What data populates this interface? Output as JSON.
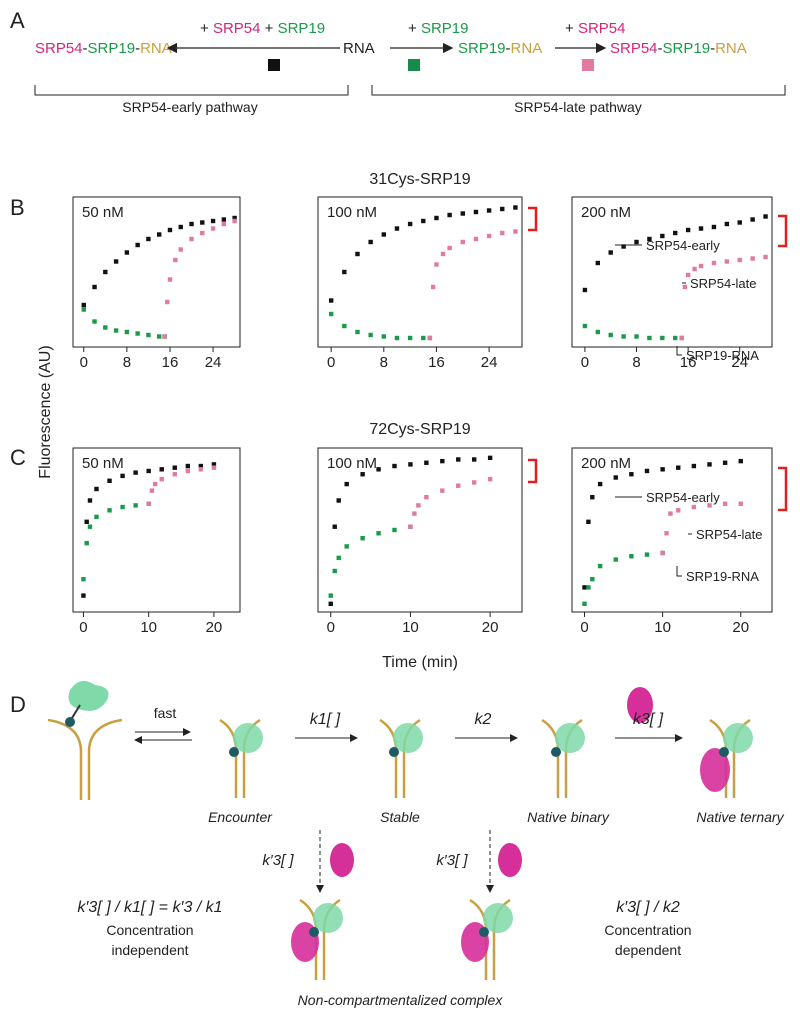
{
  "panel_labels": [
    "A",
    "B",
    "C",
    "D"
  ],
  "scheme": {
    "left_product": [
      "SRP54",
      "-",
      "SRP19",
      "-",
      "RNA"
    ],
    "left_reagents": [
      "+ ",
      "SRP54",
      " + ",
      "SRP19"
    ],
    "start": "RNA",
    "mid_reagent": [
      "+ ",
      "SRP19"
    ],
    "mid_product": [
      "SRP19",
      "-",
      "RNA"
    ],
    "right_reagent": [
      "+ ",
      "SRP54"
    ],
    "right_product": [
      "SRP54",
      "-",
      "SRP19",
      "-",
      "RNA"
    ],
    "early_pathway": "SRP54-early pathway",
    "late_pathway": "SRP54-late pathway"
  },
  "figure": {
    "row_titles": [
      "31Cys-SRP19",
      "72Cys-SRP19"
    ],
    "y_label": "Fluorescence (AU)",
    "x_label": "Time (min)"
  },
  "chart_data": [
    {
      "type": "scatter",
      "title": "50 nM",
      "xlim": [
        -2,
        29
      ],
      "xticks": [
        0,
        8,
        16,
        24
      ],
      "ylim": [
        0,
        100
      ],
      "series": [
        {
          "color": "#111111",
          "x": [
            0,
            2,
            4,
            6,
            8,
            10,
            12,
            14,
            16,
            18,
            20,
            22,
            24,
            26,
            28
          ],
          "values": [
            28,
            40,
            50,
            57,
            63,
            68,
            72,
            75,
            78,
            80,
            82,
            83,
            84,
            85,
            86
          ]
        },
        {
          "color": "#1a9a4a",
          "x": [
            0,
            2,
            4,
            6,
            8,
            10,
            12,
            14,
            15
          ],
          "values": [
            25,
            17,
            13,
            11,
            10,
            9,
            8,
            7,
            7
          ]
        },
        {
          "color": "#e07aa0",
          "x": [
            15,
            15.5,
            16,
            17,
            18,
            20,
            22,
            24,
            26,
            28
          ],
          "values": [
            7,
            30,
            45,
            58,
            65,
            72,
            76,
            79,
            82,
            84
          ]
        }
      ]
    },
    {
      "type": "scatter",
      "title": "100 nM",
      "xlim": [
        -2,
        29
      ],
      "xticks": [
        0,
        8,
        16,
        24
      ],
      "ylim": [
        0,
        100
      ],
      "series": [
        {
          "color": "#111111",
          "x": [
            0,
            2,
            4,
            6,
            8,
            10,
            12,
            14,
            16,
            18,
            20,
            22,
            24,
            26,
            28
          ],
          "values": [
            31,
            50,
            62,
            70,
            75,
            79,
            82,
            84,
            86,
            88,
            89,
            90,
            91,
            92,
            93
          ]
        },
        {
          "color": "#1a9a4a",
          "x": [
            0,
            2,
            4,
            6,
            8,
            10,
            12,
            14,
            15
          ],
          "values": [
            22,
            14,
            10,
            8,
            7,
            6,
            6,
            6,
            6
          ]
        },
        {
          "color": "#e07aa0",
          "x": [
            15,
            15.5,
            16,
            17,
            18,
            20,
            22,
            24,
            26,
            28
          ],
          "values": [
            6,
            40,
            55,
            62,
            66,
            70,
            72,
            74,
            76,
            77
          ]
        }
      ]
    },
    {
      "type": "scatter",
      "title": "200 nM",
      "xlim": [
        -2,
        29
      ],
      "xticks": [
        0,
        8,
        16,
        24
      ],
      "ylim": [
        0,
        100
      ],
      "annotations": [
        "SRP54-early",
        "SRP54-late",
        "SRP19-RNA"
      ],
      "series": [
        {
          "color": "#111111",
          "x": [
            0,
            2,
            4,
            6,
            8,
            10,
            12,
            14,
            16,
            18,
            20,
            22,
            24,
            26,
            28
          ],
          "values": [
            38,
            56,
            63,
            67,
            70,
            72,
            74,
            76,
            78,
            79,
            80,
            82,
            83,
            85,
            87
          ]
        },
        {
          "color": "#1a9a4a",
          "x": [
            0,
            2,
            4,
            6,
            8,
            10,
            12,
            14,
            15
          ],
          "values": [
            14,
            10,
            8,
            7,
            7,
            6,
            6,
            6,
            6
          ]
        },
        {
          "color": "#e07aa0",
          "x": [
            15,
            15.5,
            16,
            17,
            18,
            20,
            22,
            24,
            26,
            28
          ],
          "values": [
            6,
            40,
            48,
            52,
            54,
            56,
            57,
            58,
            59,
            60
          ]
        }
      ]
    },
    {
      "type": "scatter",
      "title": "50 nM",
      "xlim": [
        -1.6,
        24
      ],
      "xticks": [
        0,
        10,
        20
      ],
      "ylim": [
        0,
        100
      ],
      "series": [
        {
          "color": "#111111",
          "x": [
            0,
            0.5,
            1,
            2,
            4,
            6,
            8,
            10,
            12,
            14,
            16,
            18,
            20
          ],
          "values": [
            10,
            55,
            68,
            75,
            80,
            83,
            85,
            86,
            87,
            88,
            89,
            89,
            90
          ]
        },
        {
          "color": "#1a9a4a",
          "x": [
            0,
            0.5,
            1,
            2,
            4,
            6,
            8,
            10
          ],
          "values": [
            20,
            42,
            52,
            58,
            62,
            64,
            65,
            66
          ]
        },
        {
          "color": "#e07aa0",
          "x": [
            10,
            10.5,
            11,
            12,
            14,
            16,
            18,
            20
          ],
          "values": [
            66,
            74,
            78,
            81,
            84,
            86,
            87,
            88
          ]
        }
      ]
    },
    {
      "type": "scatter",
      "title": "100 nM",
      "xlim": [
        -1.6,
        24
      ],
      "xticks": [
        0,
        10,
        20
      ],
      "ylim": [
        0,
        100
      ],
      "series": [
        {
          "color": "#111111",
          "x": [
            0,
            0.5,
            1,
            2,
            4,
            6,
            8,
            10,
            12,
            14,
            16,
            18,
            20
          ],
          "values": [
            5,
            52,
            68,
            78,
            84,
            87,
            89,
            90,
            91,
            92,
            93,
            93,
            94
          ]
        },
        {
          "color": "#1a9a4a",
          "x": [
            0,
            0.5,
            1,
            2,
            4,
            6,
            8,
            10
          ],
          "values": [
            10,
            25,
            33,
            40,
            45,
            48,
            50,
            52
          ]
        },
        {
          "color": "#e07aa0",
          "x": [
            10,
            10.5,
            11,
            12,
            14,
            16,
            18,
            20
          ],
          "values": [
            52,
            60,
            65,
            70,
            74,
            77,
            79,
            81
          ]
        }
      ]
    },
    {
      "type": "scatter",
      "title": "200 nM",
      "xlim": [
        -1.6,
        24
      ],
      "xticks": [
        0,
        10,
        20
      ],
      "ylim": [
        0,
        100
      ],
      "annotations": [
        "SRP54-early",
        "SRP54-late",
        "SRP19-RNA"
      ],
      "series": [
        {
          "color": "#111111",
          "x": [
            0,
            0.5,
            1,
            2,
            4,
            6,
            8,
            10,
            12,
            14,
            16,
            18,
            20
          ],
          "values": [
            15,
            55,
            70,
            78,
            82,
            84,
            86,
            87,
            88,
            89,
            90,
            91,
            92
          ]
        },
        {
          "color": "#1a9a4a",
          "x": [
            0,
            0.5,
            1,
            2,
            4,
            6,
            8,
            10
          ],
          "values": [
            5,
            15,
            20,
            28,
            32,
            34,
            35,
            36
          ]
        },
        {
          "color": "#e07aa0",
          "x": [
            10,
            10.5,
            11,
            12,
            14,
            16,
            18,
            20
          ],
          "values": [
            36,
            48,
            60,
            62,
            64,
            65,
            66,
            66
          ]
        }
      ]
    }
  ],
  "diagram": {
    "fast": "fast",
    "k1": "k1[ ]",
    "k2": "k2",
    "k3": "k3[ ]",
    "states": [
      "Encounter",
      "Stable",
      "Native binary",
      "Native ternary"
    ],
    "k3_prime": [
      "k′3[ ]",
      "k′3[ ]"
    ],
    "left_ratio": "k′3[ ] / k1[ ] = k′3 / k1",
    "left_note": [
      "Concentration",
      "independent"
    ],
    "right_ratio": "k′3[ ] / k2",
    "right_note": [
      "Concentration",
      "dependent"
    ],
    "complex": "Non-compartmentalized complex"
  }
}
